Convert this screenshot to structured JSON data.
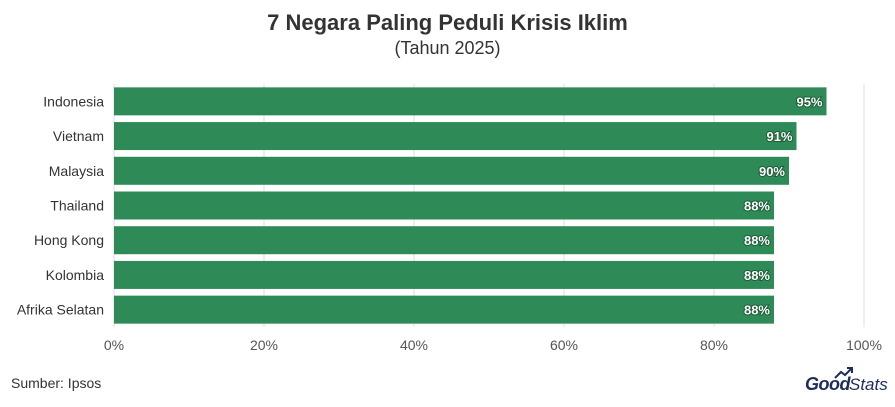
{
  "chart_data": {
    "type": "bar",
    "orientation": "horizontal",
    "title": "7 Negara Paling Peduli Krisis Iklim",
    "subtitle": "(Tahun 2025)",
    "categories": [
      "Indonesia",
      "Vietnam",
      "Malaysia",
      "Thailand",
      "Hong Kong",
      "Kolombia",
      "Afrika Selatan"
    ],
    "values": [
      95,
      91,
      90,
      88,
      88,
      88,
      88
    ],
    "value_labels": [
      "95%",
      "91%",
      "90%",
      "88%",
      "88%",
      "88%",
      "88%"
    ],
    "xlim": [
      0,
      100
    ],
    "xticks": [
      0,
      20,
      40,
      60,
      80,
      100
    ],
    "xtick_labels": [
      "0%",
      "20%",
      "40%",
      "60%",
      "80%",
      "100%"
    ],
    "grid": "vertical",
    "bar_color": "#2e8b57"
  },
  "footer": {
    "source": "Sumber: Ipsos",
    "brand_good": "Good",
    "brand_stats": "Stats"
  },
  "colors": {
    "brand": "#1f2d5a",
    "grid": "#dddddd"
  }
}
